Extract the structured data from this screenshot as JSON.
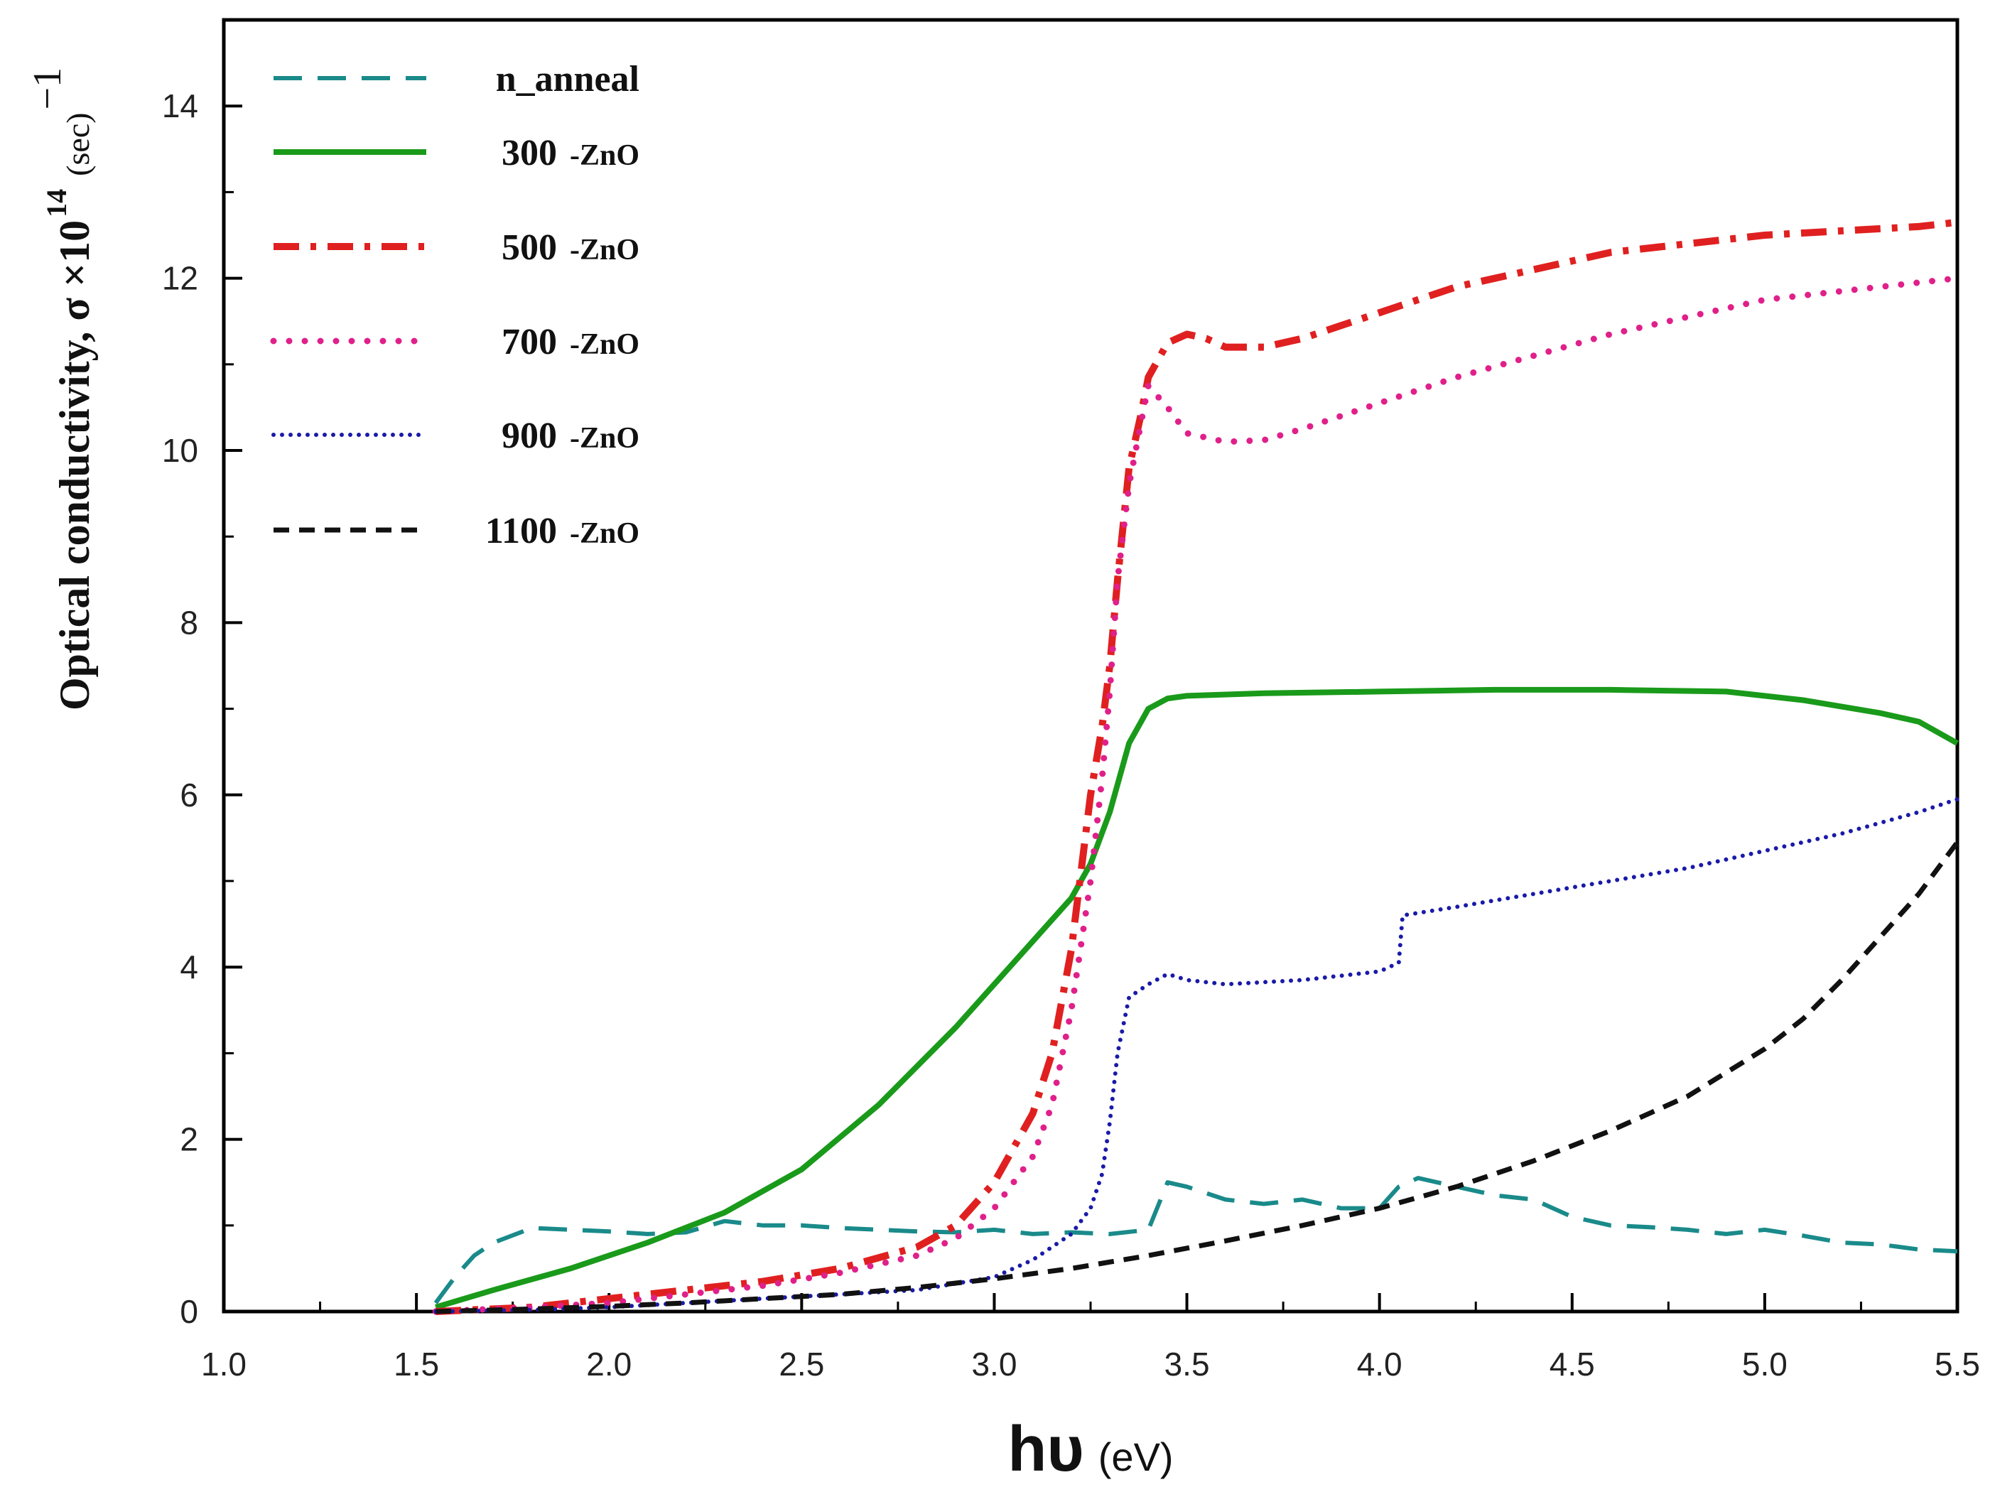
{
  "chart_data": {
    "type": "line",
    "xlabel": {
      "main": "hυ",
      "unit": "(eV)"
    },
    "ylabel": {
      "text": "Optical conductivity, σ ×10",
      "exponent": "14",
      "unit": "(sec)",
      "unit_exponent": "−1"
    },
    "xlim": [
      1.0,
      5.5
    ],
    "ylim": [
      0,
      15
    ],
    "xticks": [
      "1.0",
      "1.5",
      "2.0",
      "2.5",
      "3.0",
      "3.5",
      "4.0",
      "4.5",
      "5.0",
      "5.5"
    ],
    "yticks": [
      "0",
      "2",
      "4",
      "6",
      "8",
      "10",
      "12",
      "14"
    ],
    "legend_position": "top-left",
    "series": [
      {
        "name": "n_anneal",
        "suffix": "-ZnO",
        "show_suffix": false,
        "color": "#1a8a8a",
        "style": "dash",
        "x": [
          1.55,
          1.6,
          1.65,
          1.7,
          1.8,
          1.9,
          2.0,
          2.1,
          2.2,
          2.3,
          2.4,
          2.5,
          2.6,
          2.7,
          2.8,
          2.9,
          3.0,
          3.1,
          3.2,
          3.3,
          3.4,
          3.45,
          3.5,
          3.6,
          3.7,
          3.8,
          3.9,
          4.0,
          4.05,
          4.1,
          4.15,
          4.2,
          4.3,
          4.4,
          4.5,
          4.6,
          4.7,
          4.8,
          4.9,
          5.0,
          5.1,
          5.2,
          5.3,
          5.4,
          5.5
        ],
        "y": [
          0.1,
          0.4,
          0.65,
          0.8,
          0.97,
          0.95,
          0.93,
          0.9,
          0.92,
          1.05,
          1.0,
          1.0,
          0.97,
          0.95,
          0.93,
          0.92,
          0.95,
          0.9,
          0.92,
          0.9,
          0.95,
          1.5,
          1.45,
          1.3,
          1.25,
          1.3,
          1.2,
          1.2,
          1.45,
          1.55,
          1.5,
          1.45,
          1.35,
          1.3,
          1.1,
          1.0,
          0.98,
          0.95,
          0.9,
          0.95,
          0.88,
          0.8,
          0.78,
          0.72,
          0.7
        ]
      },
      {
        "name": "300",
        "suffix": "-ZnO",
        "show_suffix": true,
        "color": "#1a9a1a",
        "style": "solid",
        "x": [
          1.55,
          1.7,
          1.9,
          2.1,
          2.3,
          2.5,
          2.7,
          2.9,
          3.0,
          3.1,
          3.2,
          3.25,
          3.3,
          3.35,
          3.4,
          3.45,
          3.5,
          3.7,
          4.0,
          4.3,
          4.6,
          4.9,
          5.1,
          5.3,
          5.4,
          5.5
        ],
        "y": [
          0.05,
          0.25,
          0.5,
          0.8,
          1.15,
          1.65,
          2.4,
          3.3,
          3.8,
          4.3,
          4.8,
          5.2,
          5.8,
          6.6,
          7.0,
          7.12,
          7.15,
          7.18,
          7.2,
          7.22,
          7.22,
          7.2,
          7.1,
          6.95,
          6.85,
          6.6
        ]
      },
      {
        "name": "500",
        "suffix": "-ZnO",
        "show_suffix": true,
        "color": "#e02020",
        "style": "dashdot",
        "x": [
          1.55,
          1.8,
          2.0,
          2.2,
          2.4,
          2.6,
          2.8,
          2.9,
          3.0,
          3.1,
          3.15,
          3.2,
          3.25,
          3.28,
          3.3,
          3.32,
          3.35,
          3.38,
          3.4,
          3.45,
          3.5,
          3.55,
          3.6,
          3.7,
          3.8,
          3.9,
          4.0,
          4.2,
          4.4,
          4.6,
          4.8,
          5.0,
          5.2,
          5.4,
          5.5
        ],
        "y": [
          0.0,
          0.05,
          0.15,
          0.25,
          0.35,
          0.5,
          0.75,
          1.0,
          1.5,
          2.3,
          3.0,
          4.2,
          6.0,
          6.8,
          7.5,
          8.5,
          9.8,
          10.4,
          10.85,
          11.25,
          11.35,
          11.3,
          11.2,
          11.2,
          11.3,
          11.45,
          11.6,
          11.9,
          12.1,
          12.3,
          12.4,
          12.5,
          12.55,
          12.6,
          12.65
        ]
      },
      {
        "name": "700",
        "suffix": "-ZnO",
        "show_suffix": true,
        "color": "#e0208a",
        "style": "dot",
        "x": [
          1.55,
          1.8,
          2.0,
          2.2,
          2.4,
          2.6,
          2.8,
          2.9,
          3.0,
          3.1,
          3.15,
          3.2,
          3.25,
          3.28,
          3.3,
          3.32,
          3.35,
          3.38,
          3.4,
          3.45,
          3.5,
          3.6,
          3.7,
          3.8,
          4.0,
          4.2,
          4.4,
          4.6,
          4.8,
          5.0,
          5.2,
          5.4,
          5.5
        ],
        "y": [
          0.0,
          0.05,
          0.1,
          0.2,
          0.3,
          0.45,
          0.65,
          0.85,
          1.2,
          1.8,
          2.4,
          3.5,
          5.0,
          6.2,
          7.2,
          8.5,
          9.6,
          10.3,
          10.75,
          10.5,
          10.2,
          10.1,
          10.12,
          10.25,
          10.55,
          10.85,
          11.1,
          11.35,
          11.55,
          11.75,
          11.85,
          11.95,
          12.0
        ]
      },
      {
        "name": "900",
        "suffix": "-ZnO",
        "show_suffix": true,
        "color": "#1a1aa8",
        "style": "densedot",
        "x": [
          1.55,
          1.8,
          2.0,
          2.2,
          2.4,
          2.6,
          2.8,
          3.0,
          3.1,
          3.2,
          3.25,
          3.28,
          3.3,
          3.32,
          3.35,
          3.4,
          3.45,
          3.5,
          3.6,
          3.8,
          4.0,
          4.05,
          4.06,
          4.2,
          4.4,
          4.6,
          4.8,
          5.0,
          5.2,
          5.4,
          5.5
        ],
        "y": [
          0.0,
          0.02,
          0.05,
          0.1,
          0.15,
          0.2,
          0.25,
          0.4,
          0.6,
          0.9,
          1.2,
          1.6,
          2.2,
          3.0,
          3.65,
          3.8,
          3.92,
          3.85,
          3.8,
          3.85,
          3.95,
          4.05,
          4.6,
          4.7,
          4.85,
          5.0,
          5.15,
          5.35,
          5.55,
          5.8,
          5.95
        ]
      },
      {
        "name": "1100",
        "suffix": "-ZnO",
        "show_suffix": true,
        "color": "#111111",
        "style": "shortdash",
        "x": [
          1.55,
          1.8,
          2.0,
          2.2,
          2.4,
          2.6,
          2.8,
          3.0,
          3.2,
          3.4,
          3.6,
          3.8,
          4.0,
          4.2,
          4.4,
          4.6,
          4.8,
          5.0,
          5.1,
          5.2,
          5.3,
          5.4,
          5.5
        ],
        "y": [
          0.0,
          0.03,
          0.06,
          0.1,
          0.15,
          0.2,
          0.28,
          0.38,
          0.5,
          0.65,
          0.82,
          1.0,
          1.2,
          1.45,
          1.75,
          2.1,
          2.5,
          3.05,
          3.4,
          3.85,
          4.35,
          4.85,
          5.45
        ]
      }
    ]
  }
}
